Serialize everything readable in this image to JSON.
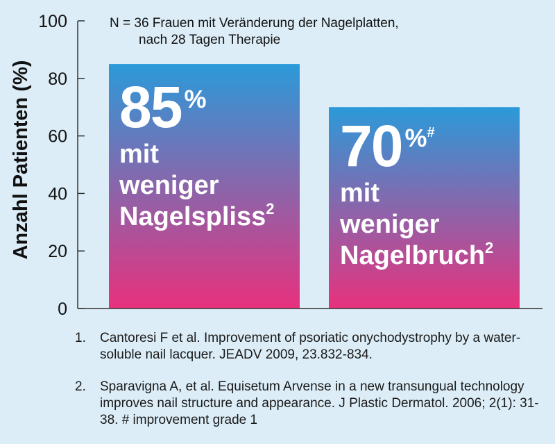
{
  "chart_data": {
    "type": "bar",
    "ylabel": "Anzahl Patienten (%)",
    "ylim": [
      0,
      100
    ],
    "yticks": [
      0,
      20,
      40,
      60,
      80,
      100
    ],
    "values": [
      85,
      70
    ],
    "colors": {
      "top": "#2b9ad9",
      "bottom": "#e8317d",
      "axis": "#333333"
    },
    "note_line1": "N = 36 Frauen mit Veränderung der Nagelplatten,",
    "note_line2": "nach 28 Tagen Therapie",
    "bars": [
      {
        "value_label": "85",
        "unit": "%",
        "marker": "",
        "line1": "mit",
        "line2": "weniger",
        "line3": "Nagelspliss",
        "sup": "2"
      },
      {
        "value_label": "70",
        "unit": "%",
        "marker": "#",
        "line1": "mit",
        "line2": "weniger",
        "line3": "Nagelbruch",
        "sup": "2"
      }
    ]
  },
  "references": [
    {
      "num": "1.",
      "text": "Cantoresi F et al. Improvement of psoriatic onychodystrophy by a water-soluble nail lacquer. JEADV 2009, 23.832-834."
    },
    {
      "num": "2.",
      "text": "Sparavigna A, et al. Equisetum Arvense in a new transungual technology improves nail structure and appearance. J Plastic Dermatol. 2006; 2(1): 31-38. # improvement grade 1"
    }
  ]
}
